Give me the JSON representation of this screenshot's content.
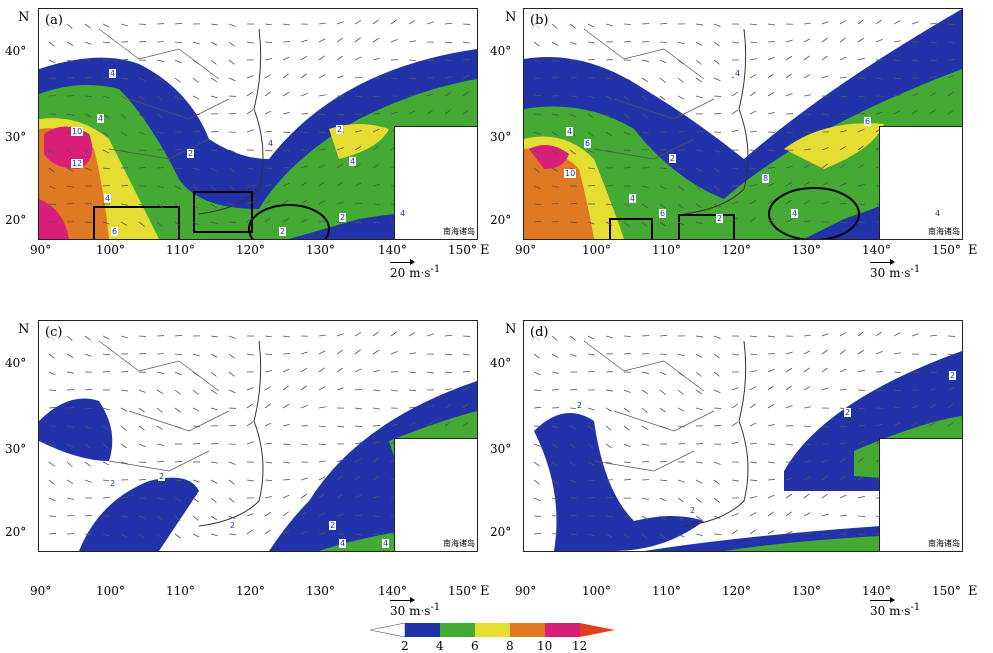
{
  "panels": [
    {
      "id": "a",
      "label": "(a)",
      "scale_text": "20 m·s",
      "scale_exp": "-1"
    },
    {
      "id": "b",
      "label": "(b)",
      "scale_text": "30 m·s",
      "scale_exp": "-1"
    },
    {
      "id": "c",
      "label": "(c)",
      "scale_text": "30 m·s",
      "scale_exp": "-1"
    },
    {
      "id": "d",
      "label": "(d)",
      "scale_text": "30 m·s",
      "scale_exp": "-1"
    }
  ],
  "axes": {
    "north_label": "N",
    "east_label": "E",
    "lat_ticks": [
      "40°",
      "30°",
      "20°"
    ],
    "lon_ticks": [
      "90°",
      "100°",
      "110°",
      "120°",
      "130°",
      "140°",
      "150°"
    ]
  },
  "inset_caption": "南海诸岛",
  "colorbar": {
    "levels": [
      "2",
      "4",
      "6",
      "8",
      "10",
      "12"
    ],
    "colors": [
      "#ffffff",
      "#2233aa",
      "#44aa33",
      "#e6dd33",
      "#e07a22",
      "#d8207a",
      "#e04020"
    ]
  },
  "contour_labels": {
    "a": [
      "4",
      "2",
      "4",
      "10",
      "12",
      "4",
      "4",
      "6",
      "2",
      "4",
      "2",
      "2",
      "4"
    ],
    "b": [
      "4",
      "2",
      "4",
      "6",
      "10",
      "4",
      "6",
      "2",
      "4",
      "8",
      "6",
      "4"
    ],
    "c": [
      "2",
      "2",
      "2",
      "4",
      "2",
      "4"
    ],
    "d": [
      "2",
      "2",
      "2",
      "2"
    ]
  }
}
